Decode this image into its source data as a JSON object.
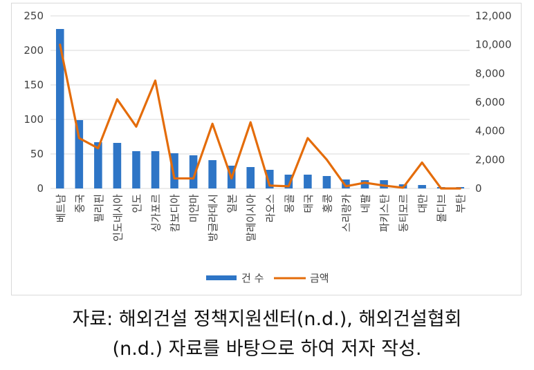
{
  "chart_data": {
    "type": "bar+line",
    "categories": [
      "베트남",
      "중국",
      "필리핀",
      "인도네시아",
      "인도",
      "싱가포르",
      "캄보디아",
      "미얀마",
      "방글라데시",
      "일본",
      "말레이시아",
      "라오스",
      "몽골",
      "태국",
      "홍콩",
      "스리랑카",
      "네팔",
      "파키스탄",
      "동티모르",
      "대만",
      "몰디브",
      "부탄"
    ],
    "series": [
      {
        "name": "건 수",
        "type": "bar",
        "axis": "left",
        "color": "#2e75c6",
        "values": [
          231,
          99,
          67,
          66,
          54,
          54,
          51,
          48,
          41,
          33,
          31,
          27,
          20,
          20,
          18,
          13,
          12,
          12,
          6,
          5,
          2,
          2
        ]
      },
      {
        "name": "금액",
        "type": "line",
        "axis": "right",
        "color": "#e46c0a",
        "values": [
          10000,
          3500,
          2800,
          6200,
          4300,
          7500,
          700,
          700,
          4500,
          700,
          4600,
          200,
          150,
          3500,
          2000,
          150,
          400,
          200,
          50,
          1800,
          0,
          0
        ]
      }
    ],
    "y_left": {
      "min": 0,
      "max": 250,
      "ticks": [
        "0",
        "50",
        "100",
        "150",
        "200",
        "250"
      ]
    },
    "y_right": {
      "min": 0,
      "max": 12000,
      "ticks": [
        "0",
        "2,000",
        "4,000",
        "6,000",
        "8,000",
        "10,000",
        "12,000"
      ]
    },
    "grid": true,
    "legend_position": "bottom"
  },
  "source": {
    "line1": "자료:  해외건설  정책지원센터(n.d.),  해외건설협회",
    "line2": "(n.d.) 자료를 바탕으로 하여 저자 작성."
  }
}
